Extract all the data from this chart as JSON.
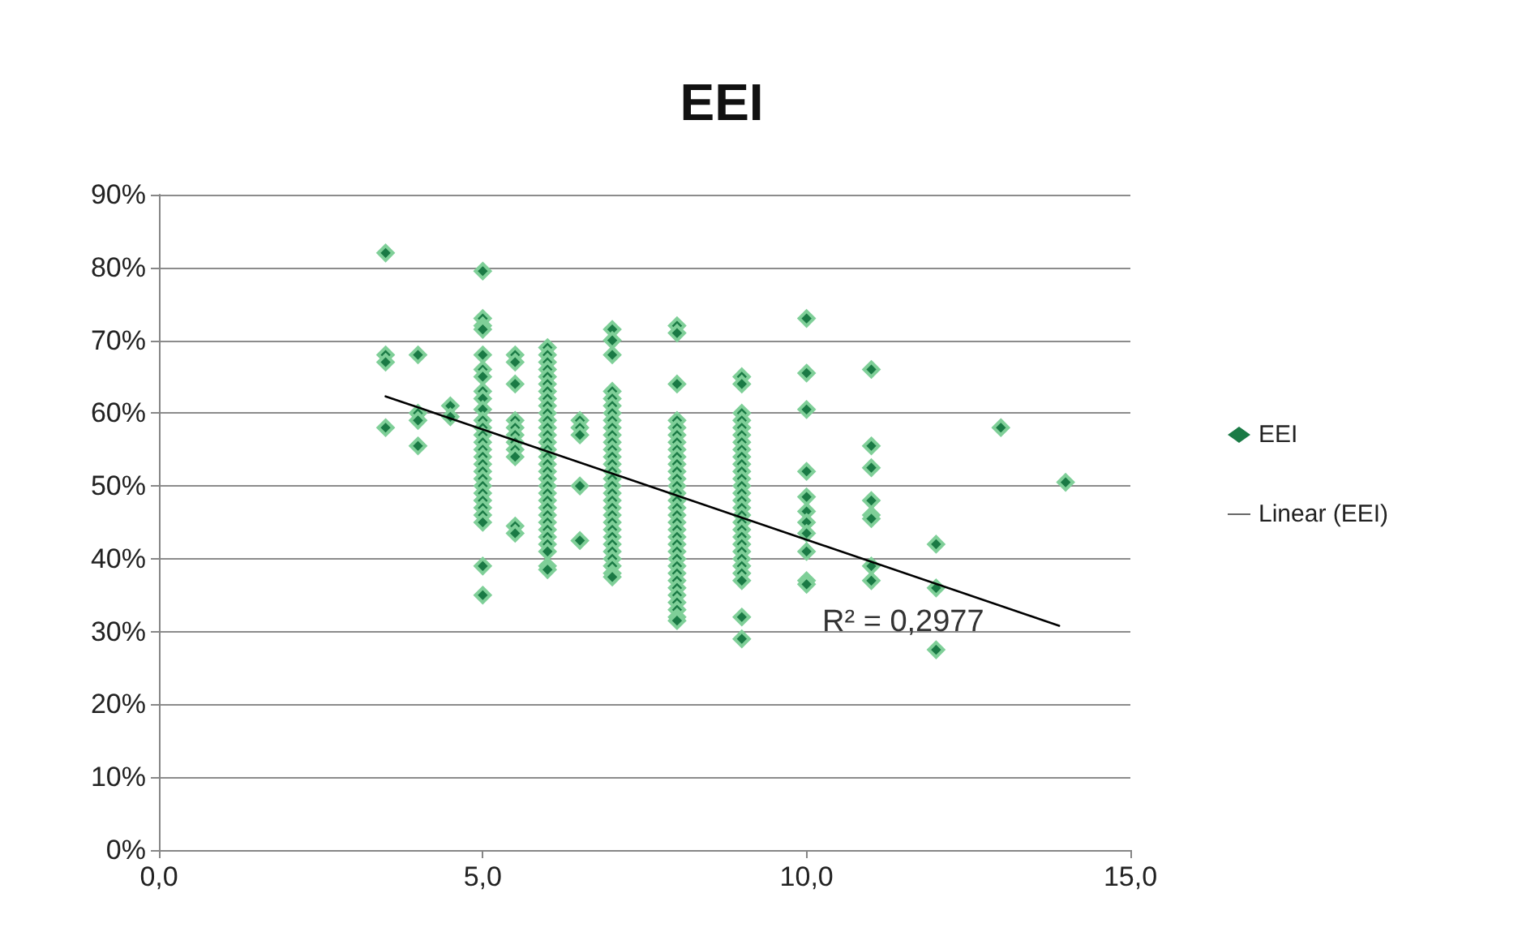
{
  "chart_data": {
    "type": "scatter",
    "title": "EEI",
    "xlim": [
      0,
      15
    ],
    "xticks": [
      {
        "value": 0,
        "label": "0,0"
      },
      {
        "value": 5,
        "label": "5,0"
      },
      {
        "value": 10,
        "label": "10,0"
      },
      {
        "value": 15,
        "label": "15,0"
      }
    ],
    "ylim": [
      0,
      90
    ],
    "yticks": [
      {
        "value": 0,
        "label": "0%"
      },
      {
        "value": 10,
        "label": "10%"
      },
      {
        "value": 20,
        "label": "20%"
      },
      {
        "value": 30,
        "label": "30%"
      },
      {
        "value": 40,
        "label": "40%"
      },
      {
        "value": 50,
        "label": "50%"
      },
      {
        "value": 60,
        "label": "60%"
      },
      {
        "value": 70,
        "label": "70%"
      },
      {
        "value": 80,
        "label": "80%"
      },
      {
        "value": 90,
        "label": "90%"
      }
    ],
    "grid": "y",
    "legend": "right",
    "marker": "diamond",
    "annotations": [
      "R² = 0,2977"
    ],
    "series": [
      {
        "name": "EEI",
        "color": "#1a7a45",
        "x": [
          3.5,
          3.5,
          3.5,
          3.5,
          4,
          4,
          4,
          4,
          4.5,
          4.5,
          5,
          5,
          5,
          5,
          5,
          5,
          5,
          5,
          5,
          5,
          5,
          5,
          5,
          5,
          5,
          5,
          5,
          5,
          5,
          5,
          5,
          5,
          5,
          5,
          5,
          5,
          5,
          5.5,
          5.5,
          5.5,
          5.5,
          5.5,
          5.5,
          5.5,
          5.5,
          5.5,
          5.5,
          5.5,
          6,
          6,
          6,
          6,
          6,
          6,
          6,
          6,
          6,
          6,
          6,
          6,
          6,
          6,
          6,
          6,
          6,
          6,
          6,
          6,
          6,
          6,
          6,
          6,
          6,
          6,
          6,
          6,
          6,
          6,
          6,
          6.5,
          6.5,
          6.5,
          6.5,
          6.5,
          7,
          7,
          7,
          7,
          7,
          7,
          7,
          7,
          7,
          7,
          7,
          7,
          7,
          7,
          7,
          7,
          7,
          7,
          7,
          7,
          7,
          7,
          7,
          7,
          7,
          7,
          7,
          7,
          7,
          7,
          8,
          8,
          8,
          8,
          8,
          8,
          8,
          8,
          8,
          8,
          8,
          8,
          8,
          8,
          8,
          8,
          8,
          8,
          8,
          8,
          8,
          8,
          8,
          8,
          8,
          8,
          8,
          8,
          8,
          8,
          8,
          8,
          9,
          9,
          9,
          9,
          9,
          9,
          9,
          9,
          9,
          9,
          9,
          9,
          9,
          9,
          9,
          9,
          9,
          9,
          9,
          9,
          9,
          9,
          9,
          9,
          9,
          9,
          9,
          9,
          10,
          10,
          10,
          10,
          10,
          10,
          10,
          10,
          10,
          10,
          10,
          11,
          11,
          11,
          11,
          11,
          11,
          11,
          11,
          12,
          12,
          12,
          13,
          14
        ],
        "values": [
          82,
          68,
          67,
          58,
          68,
          60,
          59,
          55.5,
          61,
          59.5,
          79.5,
          73,
          72,
          71.5,
          68,
          66,
          65,
          63,
          62,
          60.5,
          59,
          58,
          57,
          56,
          55,
          54,
          53,
          52,
          51,
          50,
          49,
          48,
          47,
          46,
          45,
          39,
          35,
          68,
          67,
          64,
          59,
          58,
          57,
          56,
          55,
          54,
          44.5,
          43.5,
          69,
          68,
          67,
          66,
          65,
          64,
          63,
          62,
          61,
          60,
          59,
          58,
          57,
          56,
          55,
          54,
          53,
          52,
          51,
          50,
          49,
          48,
          47,
          46,
          45,
          44,
          43,
          42,
          41,
          39,
          38.5,
          59,
          58,
          57,
          50,
          42.5,
          71.5,
          70,
          68,
          63,
          62,
          61,
          60,
          59,
          58,
          57,
          56,
          55,
          54,
          53,
          52,
          51,
          50,
          49,
          48,
          47,
          46,
          45,
          44,
          43,
          42,
          41,
          40,
          39,
          38,
          37.5,
          72,
          71,
          64,
          59,
          58,
          57,
          56,
          55,
          54,
          53,
          52,
          51,
          50,
          49,
          48,
          47,
          46,
          45,
          44,
          43,
          42,
          41,
          40,
          39,
          38,
          37,
          36,
          35,
          34,
          33,
          32,
          31.5,
          65,
          64,
          60,
          59,
          58,
          57,
          56,
          55,
          54,
          53,
          52,
          51,
          50,
          49,
          48,
          47,
          46,
          45,
          44,
          43,
          42,
          41,
          40,
          39,
          38,
          37,
          32,
          29,
          73,
          65.5,
          60.5,
          52,
          48.5,
          46.5,
          45,
          43.5,
          41,
          37,
          36.5,
          66,
          55.5,
          52.5,
          48,
          46,
          45.5,
          39,
          37,
          42,
          36,
          27.5,
          58,
          50.5
        ]
      },
      {
        "name": "Linear (EEI)",
        "type": "line",
        "color": "#000000",
        "marker": "none",
        "line_style": "solid",
        "x": [
          3.5,
          13.9
        ],
        "values": [
          62.3,
          30.8
        ]
      }
    ]
  }
}
